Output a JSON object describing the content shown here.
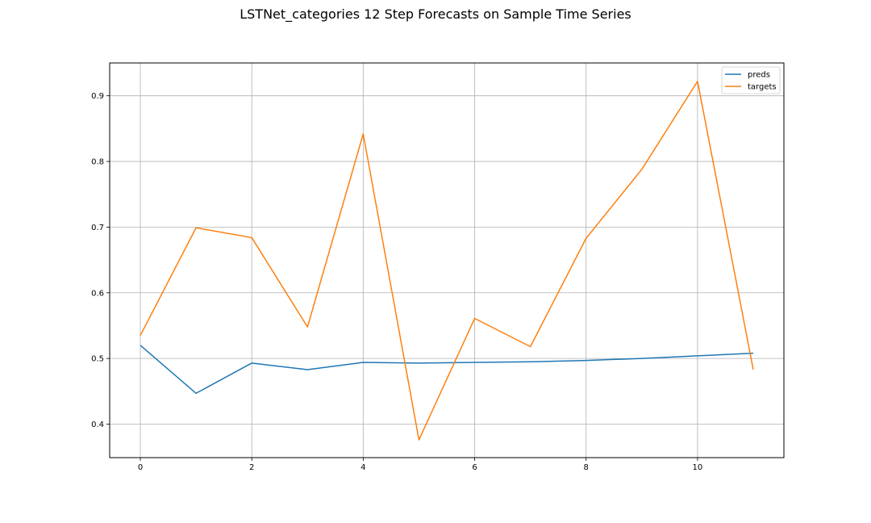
{
  "chart_data": {
    "type": "line",
    "title": "LSTNet_categories 12 Step Forecasts on Sample Time Series",
    "xlabel": "",
    "ylabel": "",
    "x": [
      0,
      1,
      2,
      3,
      4,
      5,
      6,
      7,
      8,
      9,
      10,
      11
    ],
    "xlim": [
      -0.55,
      11.55
    ],
    "ylim": [
      0.349,
      0.95
    ],
    "xticks": [
      0,
      2,
      4,
      6,
      8,
      10
    ],
    "yticks": [
      0.4,
      0.5,
      0.6,
      0.7,
      0.8,
      0.9
    ],
    "grid": true,
    "legend_position": "top-right",
    "series": [
      {
        "name": "preds",
        "color": "#1f77b4",
        "values": [
          0.52,
          0.447,
          0.493,
          0.483,
          0.494,
          0.493,
          0.494,
          0.495,
          0.497,
          0.5,
          0.504,
          0.508
        ]
      },
      {
        "name": "targets",
        "color": "#ff7f0e",
        "values": [
          0.535,
          0.699,
          0.684,
          0.548,
          0.842,
          0.376,
          0.561,
          0.518,
          0.683,
          0.788,
          0.922,
          0.483
        ]
      }
    ]
  }
}
